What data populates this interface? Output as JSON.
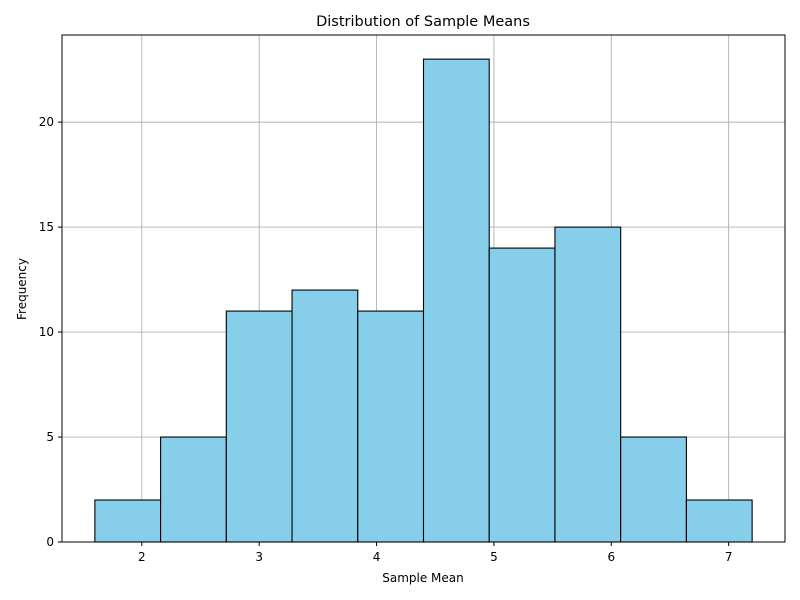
{
  "chart_data": {
    "type": "bar",
    "title": "Distribution of Sample Means",
    "xlabel": "Sample Mean",
    "ylabel": "Frequency",
    "bin_edges": [
      1.6,
      2.16,
      2.72,
      3.28,
      3.84,
      4.4,
      4.96,
      5.52,
      6.08,
      6.64,
      7.2
    ],
    "values": [
      2,
      5,
      11,
      12,
      11,
      23,
      14,
      15,
      5,
      2
    ],
    "xlim": [
      1.32,
      7.48
    ],
    "ylim": [
      0,
      24.15
    ],
    "xticks": [
      "2",
      "3",
      "4",
      "5",
      "6",
      "7"
    ],
    "yticks": [
      "0",
      "5",
      "10",
      "15",
      "20"
    ],
    "grid": true,
    "bar_color": "#87CEEB",
    "edge_color": "#000000",
    "grid_color": "#b0b0b0"
  }
}
